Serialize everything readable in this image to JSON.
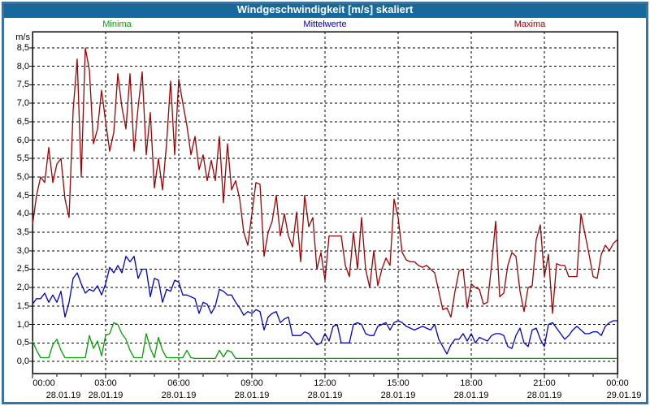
{
  "window": {
    "title": "Windgeschwindigkeit [m/s] skaliert",
    "titlebar_color": "#17689b",
    "frame_color": "#39739f"
  },
  "chart_data": {
    "type": "line",
    "title": "Windgeschwindigkeit [m/s] skaliert",
    "xlabel": "",
    "ylabel": "m/s",
    "ylim": [
      0,
      8.5
    ],
    "ytick_step": 0.5,
    "grid": true,
    "grid_style": "black dashed, vertical every 3 h, horizontal every 0.5 m/s",
    "legend_position": "top",
    "x_interval_minutes": 10,
    "x_range_hours": 24,
    "y_tick_labels": [
      "8,5",
      "8,0",
      "7,5",
      "7,0",
      "6,5",
      "6,0",
      "5,5",
      "5,0",
      "4,5",
      "4,0",
      "3,5",
      "3,0",
      "2,5",
      "2,0",
      "1,5",
      "1,0",
      "0,5",
      "0,0"
    ],
    "x_ticks": [
      {
        "time": "00:00",
        "date": "28.01.19"
      },
      {
        "time": "03:00",
        "date": "28.01.19"
      },
      {
        "time": "06:00",
        "date": "28.01.19"
      },
      {
        "time": "09:00",
        "date": "28.01.19"
      },
      {
        "time": "12:00",
        "date": "28.01.19"
      },
      {
        "time": "15:00",
        "date": "28.01.19"
      },
      {
        "time": "18:00",
        "date": "28.01.19"
      },
      {
        "time": "21:00",
        "date": "28.01.19"
      },
      {
        "time": "00:00",
        "date": "29.01.19"
      }
    ],
    "series": [
      {
        "name": "Minima",
        "color": "#00a400",
        "values": [
          0.55,
          0.3,
          0.1,
          0.1,
          0.1,
          0.45,
          0.6,
          0.3,
          0.1,
          0.1,
          0.1,
          0.1,
          0.1,
          0.1,
          0.7,
          0.35,
          0.55,
          0.15,
          0.7,
          0.75,
          1.05,
          1.0,
          0.75,
          0.6,
          0.3,
          0.1,
          0.1,
          0.1,
          0.75,
          0.35,
          0.1,
          0.65,
          0.3,
          0.1,
          0.1,
          0.1,
          0.1,
          0.1,
          0.3,
          0.1,
          0.08,
          0.08,
          0.08,
          0.08,
          0.08,
          0.08,
          0.3,
          0.12,
          0.3,
          0.25,
          0.08,
          0.08,
          0.08,
          0.08,
          0.08,
          0.08,
          0.08,
          0.08,
          0.08,
          0.08,
          0.08,
          0.08,
          0.08,
          0.08,
          0.08,
          0.08,
          0.08,
          0.08,
          0.08,
          0.08,
          0.08,
          0.08,
          0.08,
          0.08,
          0.08,
          0.08,
          0.08,
          0.08,
          0.08,
          0.08,
          0.08,
          0.08,
          0.08,
          0.08,
          0.08,
          0.08,
          0.08,
          0.08,
          0.08,
          0.08,
          0.08,
          0.08,
          0.08,
          0.08,
          0.08,
          0.08,
          0.08,
          0.08,
          0.08,
          0.08,
          0.08,
          0.08,
          0.08,
          0.08,
          0.08,
          0.08,
          0.08,
          0.08,
          0.08,
          0.08,
          0.08,
          0.08,
          0.08,
          0.08,
          0.08,
          0.08,
          0.08,
          0.08,
          0.08,
          0.08,
          0.08,
          0.08,
          0.08,
          0.08,
          0.08,
          0.08,
          0.08,
          0.08,
          0.08,
          0.08,
          0.08,
          0.08,
          0.08,
          0.08,
          0.08,
          0.08,
          0.08,
          0.08,
          0.08,
          0.08,
          0.08,
          0.08,
          0.08,
          0.08,
          0.08
        ]
      },
      {
        "name": "Mittelwerte",
        "color": "#0000cc",
        "values": [
          1.55,
          1.7,
          1.7,
          1.85,
          1.6,
          1.8,
          1.6,
          1.9,
          1.2,
          1.6,
          2.25,
          2.4,
          2.1,
          1.85,
          1.95,
          1.9,
          2.05,
          1.8,
          2.1,
          2.55,
          2.4,
          2.6,
          2.4,
          2.85,
          2.7,
          2.85,
          2.25,
          2.5,
          2.5,
          1.75,
          2.25,
          2.2,
          1.6,
          1.95,
          1.9,
          2.2,
          2.15,
          1.8,
          1.8,
          1.75,
          1.7,
          1.3,
          1.6,
          1.55,
          1.3,
          1.5,
          1.95,
          1.9,
          1.8,
          1.8,
          1.6,
          1.45,
          1.25,
          1.35,
          1.3,
          1.4,
          1.35,
          0.85,
          1.2,
          1.3,
          1.35,
          1.05,
          1.15,
          1.2,
          0.7,
          0.7,
          0.7,
          0.8,
          0.75,
          0.6,
          0.45,
          0.5,
          0.75,
          0.55,
          0.95,
          1.0,
          0.5,
          0.5,
          0.5,
          1.0,
          1.05,
          1.0,
          0.75,
          0.7,
          0.7,
          0.95,
          1.0,
          1.05,
          0.85,
          1.05,
          1.1,
          1.05,
          0.95,
          0.9,
          0.85,
          0.9,
          0.95,
          0.9,
          0.85,
          1.0,
          0.6,
          0.4,
          0.2,
          0.45,
          0.6,
          0.6,
          0.75,
          0.55,
          0.75,
          0.5,
          0.65,
          0.6,
          0.55,
          0.7,
          0.75,
          0.75,
          0.7,
          0.4,
          0.35,
          0.7,
          0.9,
          0.5,
          0.4,
          0.85,
          0.9,
          0.6,
          0.4,
          1.0,
          1.05,
          0.9,
          0.75,
          0.6,
          0.7,
          0.85,
          0.95,
          0.85,
          0.75,
          0.75,
          0.8,
          0.8,
          0.7,
          0.95,
          1.05,
          1.1,
          1.1
        ]
      },
      {
        "name": "Maxima",
        "color": "#a00000",
        "values": [
          3.7,
          4.5,
          5.0,
          4.85,
          5.8,
          4.85,
          5.35,
          5.5,
          4.4,
          3.9,
          6.8,
          8.2,
          5.0,
          8.5,
          7.9,
          5.9,
          6.3,
          7.35,
          6.5,
          5.7,
          6.2,
          7.8,
          6.9,
          6.3,
          7.8,
          5.7,
          6.9,
          7.85,
          5.6,
          6.75,
          4.7,
          5.5,
          4.65,
          5.9,
          7.6,
          5.6,
          7.65,
          7.0,
          6.4,
          5.6,
          6.1,
          5.2,
          5.6,
          4.9,
          5.45,
          4.9,
          6.1,
          4.3,
          5.9,
          4.65,
          4.9,
          4.4,
          3.5,
          3.15,
          4.0,
          4.85,
          4.8,
          2.85,
          3.5,
          3.8,
          4.5,
          3.4,
          4.0,
          3.4,
          3.1,
          4.05,
          2.7,
          4.5,
          3.65,
          3.9,
          2.5,
          2.95,
          2.2,
          3.4,
          3.4,
          3.4,
          3.4,
          2.6,
          2.3,
          3.5,
          2.5,
          3.9,
          2.5,
          2.0,
          3.0,
          2.05,
          2.5,
          2.8,
          2.6,
          4.4,
          3.9,
          2.95,
          2.75,
          2.7,
          2.7,
          2.6,
          2.55,
          2.6,
          2.5,
          2.4,
          1.9,
          1.4,
          1.45,
          1.2,
          1.9,
          2.45,
          2.5,
          1.45,
          2.1,
          2.0,
          1.95,
          1.55,
          1.6,
          2.6,
          3.8,
          1.75,
          1.85,
          2.6,
          2.95,
          2.85,
          1.9,
          1.35,
          2.0,
          2.05,
          3.3,
          3.7,
          2.3,
          2.9,
          1.3,
          2.65,
          2.6,
          2.6,
          2.3,
          2.3,
          2.3,
          4.0,
          3.45,
          2.9,
          2.3,
          2.25,
          2.9,
          3.15,
          3.0,
          3.2,
          3.3
        ]
      }
    ]
  }
}
